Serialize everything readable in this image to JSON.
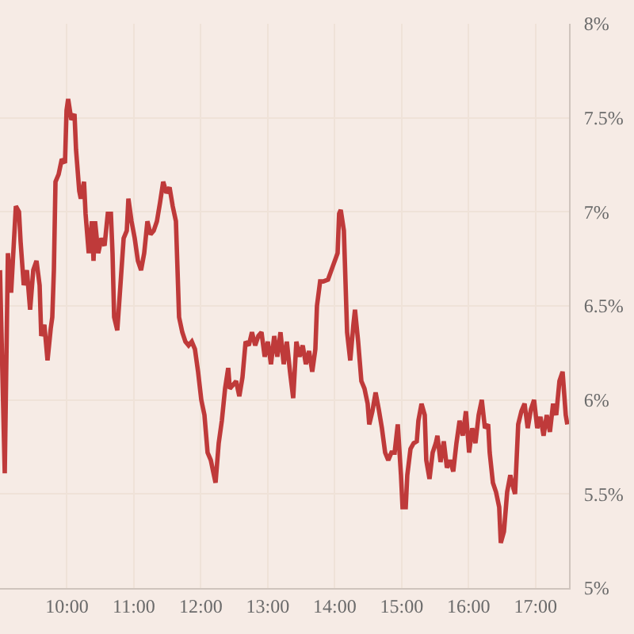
{
  "chart_data": {
    "type": "line",
    "x": [
      9.0,
      9.071,
      9.118,
      9.166,
      9.237,
      9.284,
      9.308,
      9.355,
      9.402,
      9.45,
      9.497,
      9.545,
      9.592,
      9.616,
      9.663,
      9.71,
      9.758,
      9.781,
      9.805,
      9.829,
      9.876,
      9.923,
      9.971,
      9.994,
      10.018,
      10.065,
      10.113,
      10.136,
      10.184,
      10.207,
      10.255,
      10.278,
      10.326,
      10.373,
      10.397,
      10.42,
      10.468,
      10.515,
      10.562,
      10.61,
      10.657,
      10.681,
      10.705,
      10.752,
      10.799,
      10.847,
      10.894,
      10.918,
      10.965,
      11.012,
      11.06,
      11.107,
      11.154,
      11.202,
      11.249,
      11.296,
      11.344,
      11.391,
      11.438,
      11.486,
      11.533,
      11.58,
      11.628,
      11.675,
      11.723,
      11.77,
      11.817,
      11.865,
      11.912,
      11.959,
      12.007,
      12.054,
      12.101,
      12.149,
      12.196,
      12.22,
      12.267,
      12.314,
      12.362,
      12.409,
      12.433,
      12.48,
      12.527,
      12.575,
      12.622,
      12.669,
      12.717,
      12.764,
      12.812,
      12.859,
      12.906,
      12.954,
      13.001,
      13.048,
      13.096,
      13.143,
      13.19,
      13.238,
      13.285,
      13.332,
      13.38,
      13.427,
      13.474,
      13.522,
      13.569,
      13.617,
      13.664,
      13.711,
      13.735,
      13.782,
      13.829,
      13.9,
      13.971,
      14.043,
      14.066,
      14.09,
      14.137,
      14.185,
      14.232,
      14.279,
      14.303,
      14.35,
      14.398,
      14.445,
      14.492,
      14.516,
      14.563,
      14.611,
      14.658,
      14.705,
      14.753,
      14.8,
      14.847,
      14.895,
      14.942,
      14.99,
      15.013,
      15.061,
      15.084,
      15.132,
      15.179,
      15.226,
      15.25,
      15.297,
      15.345,
      15.368,
      15.416,
      15.463,
      15.51,
      15.534,
      15.581,
      15.629,
      15.676,
      15.723,
      15.771,
      15.818,
      15.865,
      15.913,
      15.96,
      16.008,
      16.055,
      16.102,
      16.15,
      16.197,
      16.244,
      16.292,
      16.315,
      16.363,
      16.41,
      16.457,
      16.481,
      16.528,
      16.576,
      16.623,
      16.67,
      16.694,
      16.741,
      16.789,
      16.836,
      16.883,
      16.931,
      16.978,
      17.025,
      17.073,
      17.12,
      17.167,
      17.215,
      17.262,
      17.309,
      17.357,
      17.404,
      17.451,
      17.475
    ],
    "values": [
      6.69,
      5.61,
      6.78,
      6.57,
      7.03,
      7.0,
      6.84,
      6.61,
      6.69,
      6.48,
      6.69,
      6.74,
      6.61,
      6.34,
      6.4,
      6.21,
      6.38,
      6.44,
      6.69,
      7.16,
      7.2,
      7.28,
      7.26,
      7.54,
      7.6,
      7.49,
      7.52,
      7.33,
      7.11,
      7.07,
      7.16,
      6.99,
      6.78,
      6.95,
      6.74,
      6.95,
      6.78,
      6.86,
      6.82,
      6.99,
      6.99,
      6.78,
      6.44,
      6.37,
      6.61,
      6.86,
      6.9,
      7.07,
      6.95,
      6.86,
      6.74,
      6.69,
      6.78,
      6.95,
      6.88,
      6.9,
      6.95,
      7.05,
      7.16,
      7.1,
      7.13,
      7.03,
      6.95,
      6.44,
      6.36,
      6.31,
      6.29,
      6.31,
      6.27,
      6.15,
      6.0,
      5.92,
      5.72,
      5.68,
      5.6,
      5.56,
      5.77,
      5.89,
      6.06,
      6.17,
      6.06,
      6.08,
      6.1,
      6.02,
      6.12,
      6.31,
      6.29,
      6.36,
      6.29,
      6.34,
      6.36,
      6.23,
      6.31,
      6.19,
      6.34,
      6.23,
      6.36,
      6.19,
      6.31,
      6.15,
      6.01,
      6.31,
      6.23,
      6.29,
      6.19,
      6.26,
      6.15,
      6.27,
      6.5,
      6.63,
      6.63,
      6.64,
      6.71,
      6.78,
      6.99,
      7.01,
      6.9,
      6.36,
      6.21,
      6.4,
      6.48,
      6.31,
      6.1,
      6.06,
      5.98,
      5.87,
      5.94,
      6.04,
      5.95,
      5.85,
      5.72,
      5.68,
      5.72,
      5.72,
      5.87,
      5.6,
      5.43,
      5.43,
      5.6,
      5.74,
      5.77,
      5.78,
      5.89,
      5.98,
      5.92,
      5.68,
      5.58,
      5.72,
      5.77,
      5.81,
      5.67,
      5.78,
      5.64,
      5.68,
      5.62,
      5.77,
      5.89,
      5.81,
      5.94,
      5.72,
      5.85,
      5.77,
      5.92,
      6.0,
      5.85,
      5.87,
      5.72,
      5.56,
      5.51,
      5.43,
      5.24,
      5.3,
      5.51,
      5.6,
      5.53,
      5.5,
      5.87,
      5.94,
      5.98,
      5.85,
      5.95,
      6.0,
      5.85,
      5.91,
      5.81,
      5.92,
      5.83,
      5.98,
      5.92,
      6.1,
      6.15,
      5.92,
      5.87
    ],
    "color": "#bf3a3a",
    "line_style": "solid",
    "marker": "none",
    "xlim": [
      9,
      17.5
    ],
    "xticks": [
      {
        "value": 10,
        "label": "10:00"
      },
      {
        "value": 11,
        "label": "11:00"
      },
      {
        "value": 12,
        "label": "12:00"
      },
      {
        "value": 13,
        "label": "13:00"
      },
      {
        "value": 14,
        "label": "14:00"
      },
      {
        "value": 15,
        "label": "15:00"
      },
      {
        "value": 16,
        "label": "16:00"
      },
      {
        "value": 17,
        "label": "17:00"
      }
    ],
    "ylim": [
      5,
      8
    ],
    "yticks": [
      {
        "value": 5,
        "label": "5%"
      },
      {
        "value": 5.5,
        "label": "5.5%"
      },
      {
        "value": 6,
        "label": "6%"
      },
      {
        "value": 6.5,
        "label": "6.5%"
      },
      {
        "value": 7,
        "label": "7%"
      },
      {
        "value": 7.5,
        "label": "7.5%"
      },
      {
        "value": 8,
        "label": "8%"
      }
    ],
    "grid": true
  }
}
